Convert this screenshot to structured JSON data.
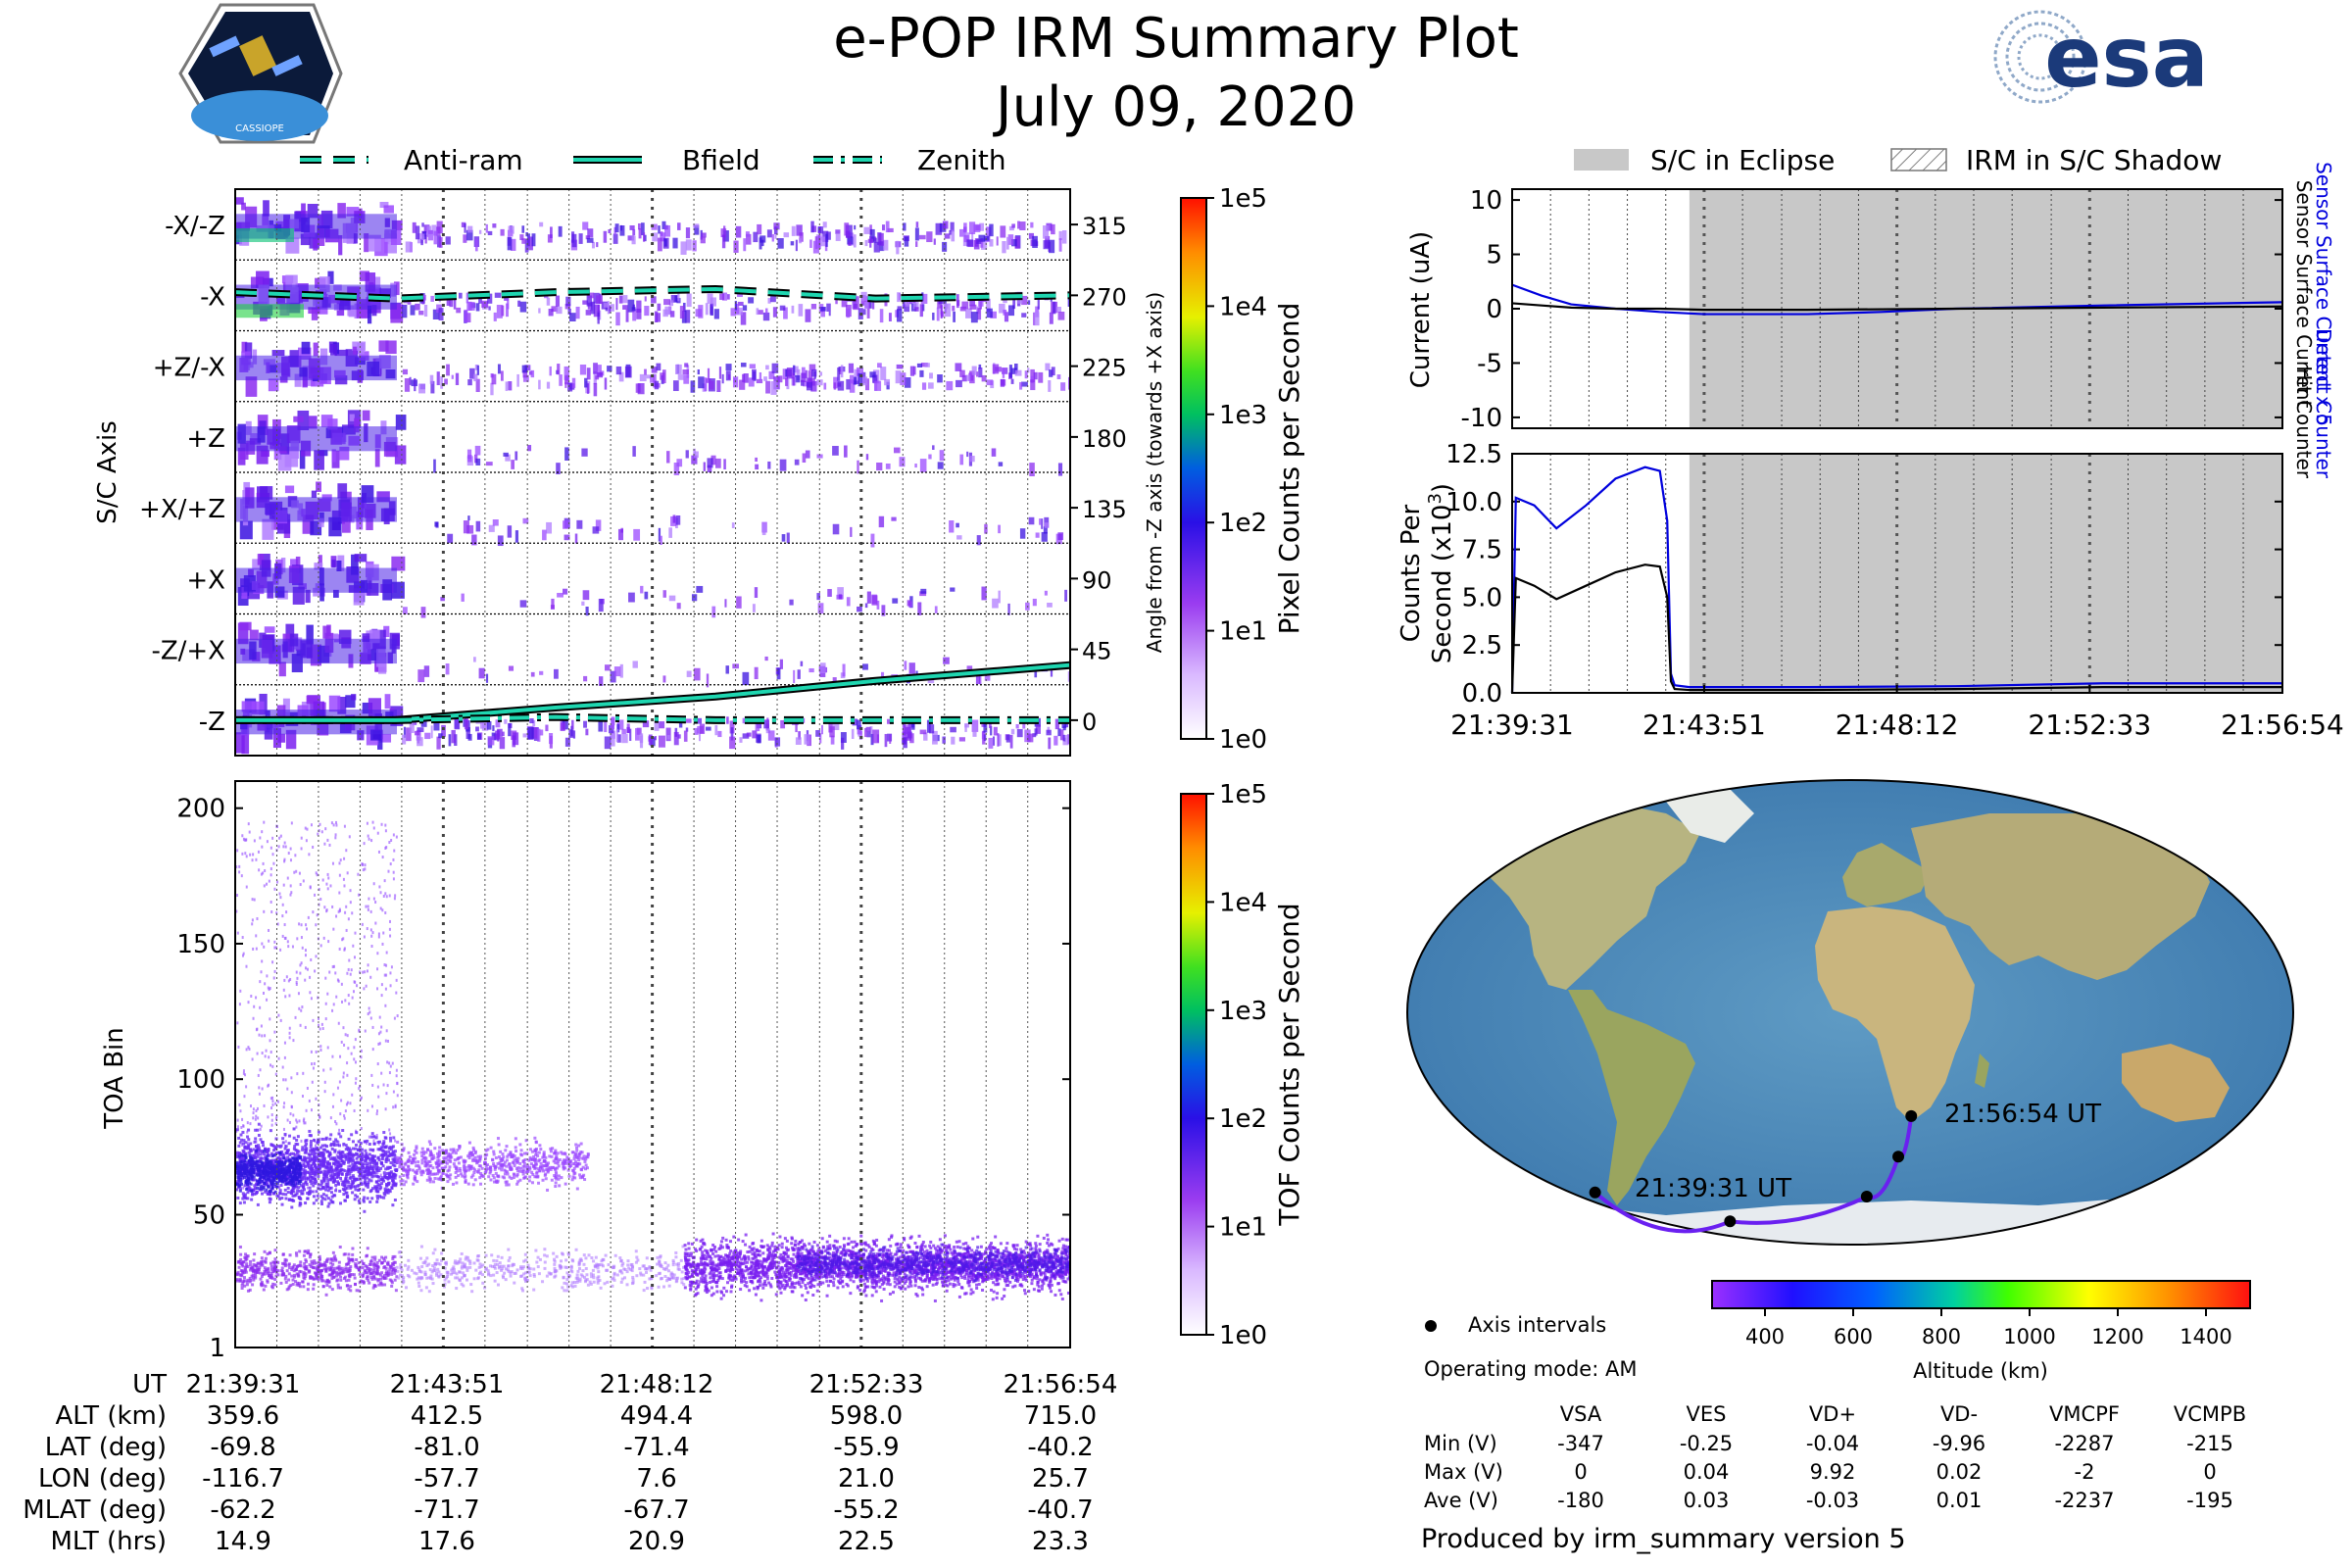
{
  "header": {
    "title": "e-POP IRM Summary Plot",
    "date": "July 09, 2020",
    "mission_logo_text": "CASSIOPE",
    "agency_logo_text": "esa"
  },
  "colors": {
    "antiram": "#1fd6b0",
    "bfield": "#1fd6b0",
    "zenith": "#1fd6b0",
    "current_blue": "#0000dd",
    "eclipse_gray": "#c8c8c8",
    "counts_purple": "#8a2be2"
  },
  "chart_data": [
    {
      "id": "angle_spectrogram",
      "type": "heatmap",
      "ylabel": "S/C Axis",
      "y2label": "Angle from -Z axis (towards +X axis)",
      "rows": [
        "-X/-Z",
        "-X",
        "+Z/-X",
        "+Z",
        "+X/+Z",
        "+X",
        "-Z/+X",
        "-Z"
      ],
      "right_ticks": [
        315,
        270,
        225,
        180,
        135,
        90,
        45,
        0
      ],
      "xlim": [
        0,
        1043
      ],
      "colorbar": {
        "label": "Pixel Counts per Second",
        "ticks": [
          "1e0",
          "1e1",
          "1e2",
          "1e3",
          "1e4",
          "1e5"
        ]
      },
      "legend": [
        "Anti-ram",
        "Bfield",
        "Zenith"
      ],
      "series": [
        {
          "name": "Anti-ram",
          "x": [
            0,
            200,
            400,
            600,
            800,
            1043
          ],
          "y": [
            272,
            268,
            272,
            274,
            268,
            270
          ]
        },
        {
          "name": "Bfield",
          "x": [
            0,
            200,
            400,
            600,
            800,
            1043
          ],
          "y": [
            0,
            0,
            8,
            15,
            25,
            35
          ]
        },
        {
          "name": "Zenith",
          "x": [
            0,
            200,
            400,
            600,
            800,
            1043
          ],
          "y": [
            0,
            0,
            2,
            0,
            0,
            0
          ]
        }
      ]
    },
    {
      "id": "toa_spectrogram",
      "type": "heatmap",
      "ylabel": "TOA Bin",
      "yticks": [
        1,
        50,
        100,
        150,
        200
      ],
      "ylim": [
        1,
        210
      ],
      "xlim": [
        0,
        1043
      ],
      "colorbar": {
        "label": "TOF Counts per Second",
        "ticks": [
          "1e0",
          "1e1",
          "1e2",
          "1e3",
          "1e4",
          "1e5"
        ]
      }
    },
    {
      "id": "current_panel",
      "type": "line",
      "ylabel": "Current (uA)",
      "right_label_blue": "Sensor Surface Current x 5",
      "right_label_black": "Sensor Surface Current",
      "ylim": [
        -11,
        11
      ],
      "yticks": [
        10,
        5,
        0,
        -5,
        -10
      ],
      "xlim": [
        0,
        1043
      ],
      "eclipse_start": 240,
      "legend": [
        "S/C in Eclipse",
        "IRM in S/C Shadow"
      ],
      "series": [
        {
          "name": "Sensor Surface Current x 5",
          "x": [
            0,
            40,
            80,
            140,
            200,
            260,
            400,
            500,
            600,
            800,
            1043
          ],
          "y": [
            2.2,
            1.2,
            0.4,
            0.0,
            -0.3,
            -0.5,
            -0.5,
            -0.3,
            0.0,
            0.3,
            0.6
          ]
        },
        {
          "name": "Sensor Surface Current",
          "x": [
            0,
            40,
            80,
            140,
            200,
            260,
            400,
            600,
            800,
            1043
          ],
          "y": [
            0.5,
            0.3,
            0.1,
            0.0,
            0.0,
            -0.1,
            -0.1,
            0.0,
            0.1,
            0.2
          ]
        }
      ]
    },
    {
      "id": "counts_panel",
      "type": "line",
      "ylabel": "Counts Per Second (x10^3)",
      "right_label_blue": "Detect Counter",
      "right_label_black": "Hit Counter",
      "ylim": [
        0,
        12.5
      ],
      "yticks": [
        "12.5",
        "10.0",
        "7.5",
        "5.0",
        "2.5",
        "0.0"
      ],
      "xticks": [
        "21:39:31",
        "21:43:51",
        "21:48:12",
        "21:52:33",
        "21:56:54"
      ],
      "xlim": [
        0,
        1043
      ],
      "eclipse_start": 240,
      "series": [
        {
          "name": "Detect Counter",
          "x": [
            0,
            5,
            30,
            60,
            100,
            140,
            180,
            200,
            210,
            215,
            220,
            240,
            400,
            600,
            800,
            1043
          ],
          "y": [
            0,
            10.2,
            9.8,
            8.6,
            9.8,
            11.2,
            11.8,
            11.6,
            9.0,
            1.0,
            0.4,
            0.3,
            0.3,
            0.35,
            0.5,
            0.5
          ]
        },
        {
          "name": "Hit Counter",
          "x": [
            0,
            5,
            30,
            60,
            100,
            140,
            180,
            200,
            210,
            215,
            220,
            240,
            400,
            600,
            800,
            1043
          ],
          "y": [
            0,
            6.0,
            5.6,
            4.9,
            5.6,
            6.3,
            6.7,
            6.6,
            5.0,
            0.6,
            0.2,
            0.15,
            0.15,
            0.2,
            0.3,
            0.3
          ]
        }
      ]
    }
  ],
  "map": {
    "start_label": "21:39:31 UT",
    "end_label": "21:56:54 UT",
    "legend_dot": "Axis intervals",
    "mode": "Operating mode: AM",
    "altitude_label": "Altitude (km)",
    "altitude_ticks": [
      "400",
      "600",
      "800",
      "1000",
      "1200",
      "1400"
    ],
    "track_lon": [
      -116.7,
      -57.7,
      7.6,
      21.0,
      25.7
    ],
    "track_lat": [
      -69.8,
      -81.0,
      -71.4,
      -55.9,
      -40.2
    ]
  },
  "ephemeris": {
    "labels": [
      "UT",
      "ALT (km)",
      "LAT (deg)",
      "LON (deg)",
      "MLAT (deg)",
      "MLT (hrs)"
    ],
    "columns": [
      [
        "21:39:31",
        "359.6",
        "-69.8",
        "-116.7",
        "-62.2",
        "14.9"
      ],
      [
        "21:43:51",
        "412.5",
        "-81.0",
        "-57.7",
        "-71.7",
        "17.6"
      ],
      [
        "21:48:12",
        "494.4",
        "-71.4",
        "7.6",
        "-67.7",
        "20.9"
      ],
      [
        "21:52:33",
        "598.0",
        "-55.9",
        "21.0",
        "-55.2",
        "22.5"
      ],
      [
        "21:56:54",
        "715.0",
        "-40.2",
        "25.7",
        "-40.7",
        "23.3"
      ]
    ]
  },
  "voltages": {
    "headers": [
      "VSA",
      "VES",
      "VD+",
      "VD-",
      "VMCPF",
      "VCMPB"
    ],
    "rows": [
      {
        "label": "Min (V)",
        "values": [
          "-347",
          "-0.25",
          "-0.04",
          "-9.96",
          "-2287",
          "-215"
        ]
      },
      {
        "label": "Max (V)",
        "values": [
          "0",
          "0.04",
          "9.92",
          "0.02",
          "-2",
          "0"
        ]
      },
      {
        "label": "Ave (V)",
        "values": [
          "-180",
          "0.03",
          "-0.03",
          "0.01",
          "-2237",
          "-195"
        ]
      }
    ]
  },
  "footer": "Produced by irm_summary version 5"
}
